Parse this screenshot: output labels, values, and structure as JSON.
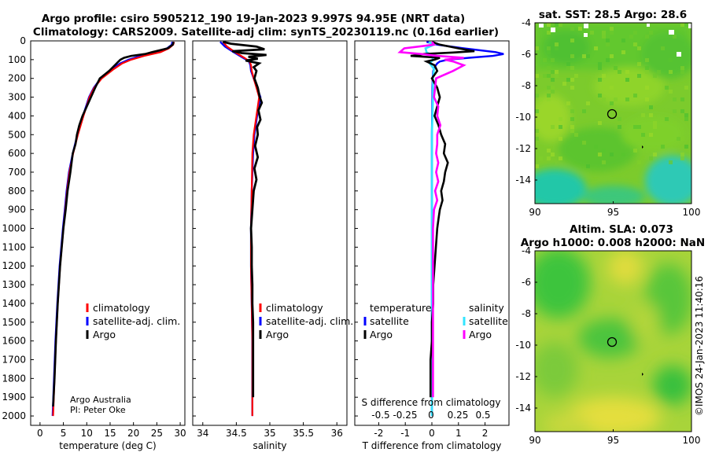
{
  "figure": {
    "title_line1": "Argo profile: csiro 5905212_190 19-Jan-2023 9.997S 94.95E (NRT data)",
    "title_line2": "Climatology: CARS2009. Satellite-adj clim: synTS_20230119.nc (0.16d earlier)",
    "credit_line1": "Argo Australia",
    "credit_line2": "PI: Peter Oke",
    "watermark": "©IMOS 24-Jan-2023 11:40:16",
    "colors": {
      "climatology": "#ff0000",
      "satellite": "#0000ff",
      "argo": "#000000",
      "sat_salinity": "#33e5ff",
      "argo_salinity": "#ff00ff"
    }
  },
  "chart_data": [
    {
      "type": "line",
      "panel": "temperature",
      "xlabel": "temperature (deg C)",
      "xlim": [
        -2,
        31
      ],
      "xticks": [
        0,
        5,
        10,
        15,
        20,
        25,
        30
      ],
      "ylim": [
        0,
        2050
      ],
      "yticks": [
        0,
        100,
        200,
        300,
        400,
        500,
        600,
        700,
        800,
        900,
        1000,
        1100,
        1200,
        1300,
        1400,
        1500,
        1600,
        1700,
        1800,
        1900,
        2000
      ],
      "legend": [
        "climatology",
        "satellite-adj. clim.",
        "Argo"
      ],
      "legend_position": "lower-right",
      "series": [
        {
          "name": "climatology",
          "depth": [
            5,
            20,
            40,
            60,
            80,
            100,
            120,
            150,
            200,
            250,
            300,
            400,
            500,
            600,
            700,
            800,
            900,
            1000,
            1200,
            1400,
            1600,
            1800,
            2000
          ],
          "values": [
            28.7,
            28.5,
            27.6,
            25.8,
            22.3,
            19.5,
            17.6,
            15.8,
            13.2,
            11.6,
            10.6,
            9.3,
            8.1,
            7.1,
            6.3,
            5.8,
            5.4,
            5.0,
            4.3,
            3.8,
            3.4,
            3.1,
            2.8
          ]
        },
        {
          "name": "satellite-adj. clim.",
          "depth": [
            5,
            20,
            40,
            60,
            80,
            100,
            120,
            150,
            200,
            250,
            300,
            400,
            500,
            600,
            700,
            800,
            900,
            1000,
            1200,
            1400,
            1600,
            1800,
            2000
          ],
          "values": [
            28.3,
            28.2,
            27.2,
            25.0,
            21.5,
            19.0,
            17.2,
            15.4,
            13.0,
            11.5,
            10.5,
            9.2,
            8.0,
            7.0,
            6.2,
            5.7,
            5.3,
            4.9,
            4.2,
            3.7,
            3.3,
            3.0,
            2.7
          ]
        },
        {
          "name": "Argo",
          "depth": [
            5,
            20,
            40,
            60,
            70,
            80,
            90,
            100,
            110,
            130,
            160,
            200,
            250,
            300,
            350,
            400,
            450,
            500,
            550,
            600,
            700,
            800,
            900,
            1000,
            1200,
            1400,
            1600,
            1800,
            1950
          ],
          "values": [
            28.6,
            28.4,
            27.3,
            24.0,
            22.5,
            19.5,
            18.0,
            17.2,
            16.8,
            16.0,
            14.8,
            12.8,
            11.8,
            10.9,
            10.0,
            9.1,
            8.4,
            7.9,
            7.6,
            7.0,
            6.5,
            5.9,
            5.5,
            5.0,
            4.3,
            3.8,
            3.4,
            3.1,
            2.8
          ]
        }
      ]
    },
    {
      "type": "line",
      "panel": "salinity",
      "xlabel": "salinity",
      "xlim": [
        33.85,
        36.15
      ],
      "xticks": [
        34,
        34.5,
        35,
        35.5,
        36
      ],
      "xtick_labels": [
        "34",
        "34.5",
        "35",
        "35.5",
        "36"
      ],
      "ylim": [
        0,
        2050
      ],
      "legend": [
        "climatology",
        "satellite-adj. clim.",
        "Argo"
      ],
      "legend_position": "lower-right",
      "series": [
        {
          "name": "climatology",
          "depth": [
            5,
            30,
            60,
            90,
            110,
            130,
            160,
            200,
            250,
            300,
            400,
            500,
            600,
            800,
            1000,
            1200,
            1400,
            1600,
            1800,
            2000
          ],
          "values": [
            34.3,
            34.36,
            34.48,
            34.62,
            34.7,
            34.72,
            34.73,
            34.76,
            34.8,
            34.84,
            34.8,
            34.76,
            34.74,
            34.73,
            34.72,
            34.72,
            34.73,
            34.74,
            34.74,
            34.74
          ]
        },
        {
          "name": "satellite-adj. clim.",
          "depth": [
            5,
            30,
            60,
            90,
            110,
            130,
            160,
            200,
            250,
            300,
            400,
            500,
            600,
            800,
            1000,
            1200,
            1400,
            1600,
            1800,
            2000
          ],
          "values": [
            34.26,
            34.33,
            34.46,
            34.6,
            34.69,
            34.71,
            34.72,
            34.76,
            34.81,
            34.86,
            34.81,
            34.77,
            34.75,
            34.73,
            34.72,
            34.72,
            34.73,
            34.74,
            34.74,
            34.74
          ]
        },
        {
          "name": "Argo",
          "depth": [
            5,
            15,
            30,
            45,
            55,
            65,
            75,
            85,
            95,
            105,
            120,
            140,
            160,
            200,
            250,
            300,
            330,
            370,
            420,
            460,
            500,
            560,
            620,
            680,
            740,
            800,
            900,
            1000,
            1100,
            1200,
            1300,
            1400,
            1500,
            1600,
            1700,
            1800,
            1900
          ],
          "values": [
            34.3,
            34.42,
            34.8,
            34.92,
            34.44,
            34.58,
            34.95,
            34.68,
            34.82,
            34.64,
            34.84,
            34.76,
            34.8,
            34.77,
            34.82,
            34.85,
            34.88,
            34.83,
            34.86,
            34.81,
            34.82,
            34.78,
            34.82,
            34.77,
            34.8,
            34.76,
            34.74,
            34.72,
            34.73,
            34.73,
            34.74,
            34.74,
            34.75,
            34.75,
            34.75,
            34.75,
            34.75
          ]
        }
      ]
    },
    {
      "type": "line",
      "panel": "difference",
      "xlabel": "T difference from climatology",
      "xlim": [
        -2.9,
        2.9
      ],
      "xticks": [
        -2,
        -1,
        0,
        1,
        2
      ],
      "top_axis_label": "S difference from climatology",
      "top_ticks": [
        "-0.5",
        "-0.25",
        "0",
        "0.25",
        "0.5"
      ],
      "ylim": [
        0,
        2050
      ],
      "legend_headers": [
        "temperature",
        "salinity"
      ],
      "legend": [
        "satellite",
        "Argo",
        "satellite",
        "Argo"
      ],
      "legend_position": "lower-right",
      "series": [
        {
          "name": "temperature satellite",
          "depth": [
            5,
            20,
            40,
            60,
            70,
            80,
            90,
            100,
            110,
            120,
            140,
            160,
            200,
            250,
            300,
            400,
            500,
            800,
            1200,
            1600,
            2000
          ],
          "values": [
            -0.2,
            0.2,
            1.2,
            2.4,
            2.7,
            2.3,
            1.4,
            0.6,
            0.3,
            0.2,
            0.1,
            0.05,
            0.03,
            0.02,
            0.02,
            0.01,
            0.0,
            0.0,
            0.0,
            0.0,
            0.0
          ]
        },
        {
          "name": "temperature Argo",
          "depth": [
            5,
            20,
            40,
            55,
            62,
            70,
            80,
            90,
            100,
            110,
            130,
            160,
            200,
            250,
            300,
            350,
            400,
            450,
            500,
            550,
            600,
            650,
            700,
            750,
            800,
            850,
            900,
            950,
            1000,
            1100,
            1200,
            1300,
            1400,
            1500,
            1600,
            1700,
            1800,
            1900
          ],
          "values": [
            0.0,
            0.3,
            1.0,
            1.6,
            0.8,
            -0.3,
            -0.8,
            0.3,
            0.1,
            -0.2,
            0.1,
            0.2,
            0.0,
            0.2,
            0.3,
            0.2,
            0.1,
            0.25,
            0.35,
            0.5,
            0.45,
            0.6,
            0.5,
            0.45,
            0.35,
            0.4,
            0.3,
            0.25,
            0.2,
            0.15,
            0.1,
            0.05,
            0.05,
            0.0,
            0.0,
            -0.05,
            -0.05,
            -0.05
          ]
        },
        {
          "name": "salinity satellite",
          "depth": [
            5,
            20,
            40,
            60,
            80,
            100,
            120,
            150,
            200,
            300,
            500,
            800,
            1200,
            1600,
            2000
          ],
          "values": [
            -0.03,
            0.02,
            -0.06,
            -0.05,
            0.0,
            0.01,
            -0.02,
            0.02,
            0.01,
            0.01,
            0.0,
            0.0,
            0.0,
            0.0,
            0.0
          ]
        },
        {
          "name": "salinity Argo",
          "depth": [
            5,
            20,
            40,
            60,
            70,
            80,
            90,
            100,
            110,
            130,
            160,
            200,
            250,
            300,
            350,
            400,
            450,
            500,
            550,
            600,
            650,
            700,
            750,
            800,
            850,
            900,
            1000,
            1100,
            1200,
            1300,
            1400,
            1500,
            1600,
            1700,
            1800,
            1900
          ],
          "values": [
            0.0,
            0.02,
            -0.26,
            -0.3,
            -0.1,
            0.05,
            0.3,
            0.12,
            0.2,
            0.3,
            0.2,
            0.04,
            0.03,
            0.02,
            0.06,
            0.05,
            0.08,
            0.05,
            0.05,
            0.04,
            0.06,
            0.04,
            0.06,
            0.03,
            0.05,
            0.02,
            0.01,
            0.01,
            0.01,
            0.01,
            0.01,
            0.01,
            0.01,
            0.01,
            0.01,
            0.01
          ]
        }
      ]
    },
    {
      "type": "heatmap",
      "panel": "sst_map",
      "title": "sat. SST: 28.5 Argo: 28.6",
      "xlim": [
        90,
        100
      ],
      "xticks": [
        90,
        95,
        100
      ],
      "ylim": [
        -15.5,
        -4
      ],
      "yticks": [
        -4,
        -6,
        -8,
        -10,
        -12,
        -14
      ],
      "profile_marker": {
        "lon": 94.95,
        "lat": -9.997
      }
    },
    {
      "type": "heatmap",
      "panel": "sla_map",
      "title_line1": "Altim. SLA: 0.073",
      "title_line2": "Argo h1000: 0.008 h2000: NaN",
      "xlim": [
        90,
        100
      ],
      "xticks": [
        90,
        95,
        100
      ],
      "ylim": [
        -15.5,
        -4
      ],
      "yticks": [
        -4,
        -6,
        -8,
        -10,
        -12,
        -14
      ],
      "profile_marker": {
        "lon": 94.95,
        "lat": -9.997
      }
    }
  ]
}
